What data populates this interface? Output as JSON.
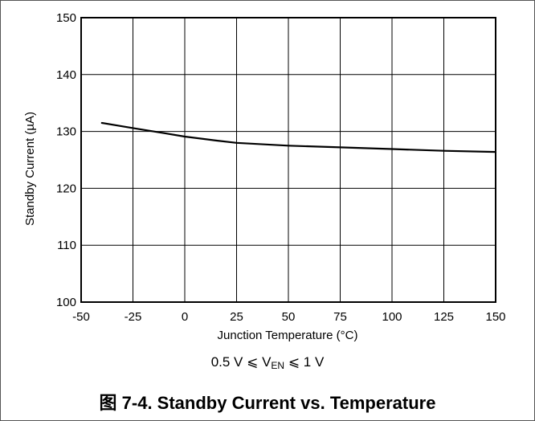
{
  "figure": {
    "condition_prefix": "0.5 V ⩽ V",
    "condition_sub": "EN",
    "condition_suffix": " ⩽ 1 V",
    "caption": "图 7-4. Standby Current vs. Temperature"
  },
  "chart_data": {
    "type": "line",
    "title": "",
    "xlabel": "Junction Temperature (°C)",
    "ylabel": "Standby Current (µA)",
    "xlim": [
      -50,
      150
    ],
    "ylim": [
      100,
      150
    ],
    "xticks": [
      -50,
      -25,
      0,
      25,
      50,
      75,
      100,
      125,
      150
    ],
    "yticks": [
      100,
      110,
      120,
      130,
      140,
      150
    ],
    "grid": true,
    "legend": "none",
    "line_color": "#000000",
    "series": [
      {
        "x": [
          -40,
          -25,
          -10,
          0,
          15,
          25,
          50,
          75,
          100,
          125,
          150
        ],
        "y": [
          131.5,
          130.6,
          129.7,
          129.1,
          128.4,
          128.0,
          127.5,
          127.2,
          126.9,
          126.6,
          126.4
        ]
      }
    ]
  }
}
